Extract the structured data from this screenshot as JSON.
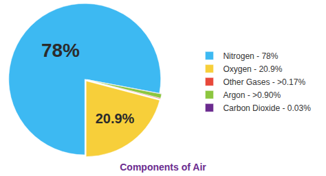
{
  "chart_data": {
    "type": "pie",
    "title": "Components of Air",
    "categories": [
      "Nitrogen - 78%",
      "Oxygen - 20.9%",
      "Other Gases - >0.17%",
      "Argon - >0.90%",
      "Carbon Dioxide - 0.03%"
    ],
    "values": [
      78,
      20.9,
      0.17,
      0.9,
      0.03
    ],
    "value_labels": [
      "78%",
      "20.9%",
      null,
      null,
      null
    ],
    "data_labels": true,
    "colors": [
      "#3db9f2",
      "#f7cf3a",
      "#e8483a",
      "#8cc63f",
      "#6b2b8f"
    ],
    "legend": "right"
  }
}
